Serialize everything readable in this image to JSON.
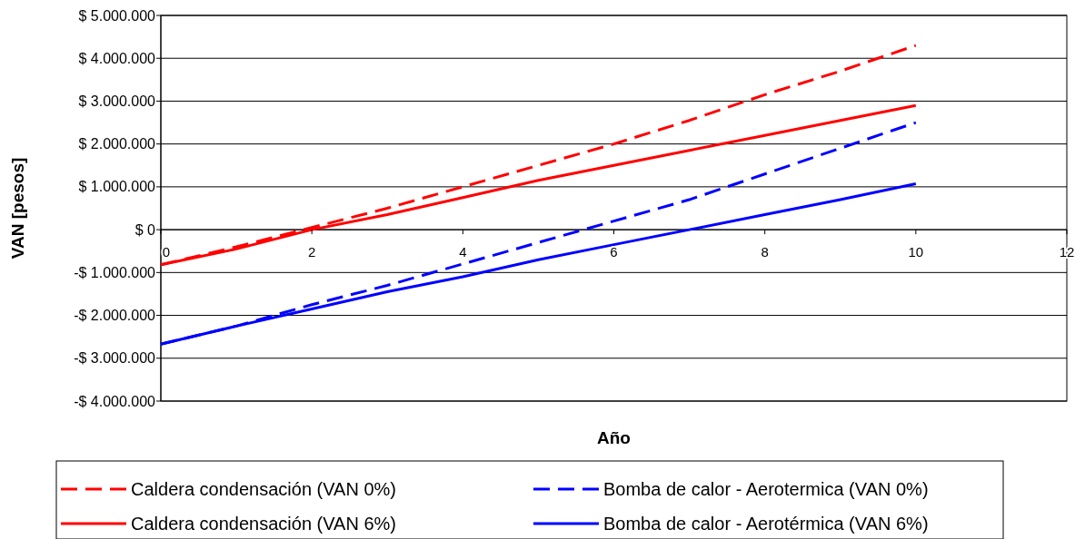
{
  "chart_data": {
    "type": "line",
    "xlabel": "Año",
    "ylabel": "VAN [pesos]",
    "xlim": [
      0,
      12
    ],
    "xticks": [
      0,
      2,
      4,
      6,
      8,
      10,
      12
    ],
    "ylim": [
      -4000000,
      5000000
    ],
    "yticks": [
      {
        "value": -4000000,
        "label": "-$ 4.000.000"
      },
      {
        "value": -3000000,
        "label": "-$ 3.000.000"
      },
      {
        "value": -2000000,
        "label": "-$ 2.000.000"
      },
      {
        "value": -1000000,
        "label": "-$ 1.000.000"
      },
      {
        "value": 0,
        "label": "$ 0"
      },
      {
        "value": 1000000,
        "label": "$ 1.000.000"
      },
      {
        "value": 2000000,
        "label": "$ 2.000.000"
      },
      {
        "value": 3000000,
        "label": "$ 3.000.000"
      },
      {
        "value": 4000000,
        "label": "$ 4.000.000"
      },
      {
        "value": 5000000,
        "label": "$ 5.000.000"
      }
    ],
    "grid": "y",
    "legend": "bottom",
    "marker": "none",
    "x": [
      0,
      1,
      2,
      3,
      4,
      5,
      6,
      7,
      8,
      9,
      10
    ],
    "series": [
      {
        "name": "Caldera condensación (VAN 0%)",
        "color": "#ff0000",
        "line_style": "dashed",
        "values": [
          -820000,
          -400000,
          50000,
          500000,
          1000000,
          1500000,
          2000000,
          2550000,
          3150000,
          3700000,
          4300000
        ]
      },
      {
        "name": "Caldera condensación (VAN 6%)",
        "color": "#ff0000",
        "line_style": "solid",
        "values": [
          -820000,
          -450000,
          0,
          350000,
          750000,
          1150000,
          1500000,
          1850000,
          2200000,
          2550000,
          2900000
        ]
      },
      {
        "name": "Bomba de calor - Aerotermica (VAN 0%)",
        "color": "#0000ff",
        "line_style": "dashed",
        "values": [
          -2670000,
          -2250000,
          -1750000,
          -1300000,
          -800000,
          -300000,
          200000,
          700000,
          1300000,
          1900000,
          2500000
        ]
      },
      {
        "name": "Bomba de calor - Aerotérmica (VAN 6%)",
        "color": "#0000ff",
        "line_style": "solid",
        "values": [
          -2670000,
          -2250000,
          -1850000,
          -1450000,
          -1100000,
          -700000,
          -350000,
          0,
          350000,
          700000,
          1070000
        ]
      }
    ]
  }
}
